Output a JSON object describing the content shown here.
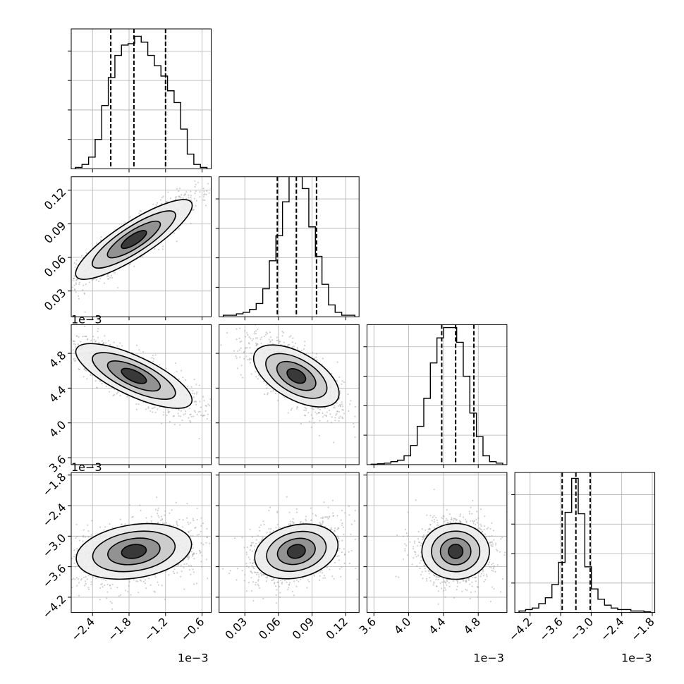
{
  "chart_data": {
    "type": "corner",
    "parameters": [
      {
        "axis_min": -2.75,
        "axis_max": -0.45,
        "ticks": [
          -2.4,
          -1.8,
          -1.2,
          -0.6
        ],
        "tick_labels": [
          "−2.4",
          "−1.8",
          "−1.2",
          "−0.6"
        ],
        "offset_label": "1e−3",
        "quantiles": [
          -2.1,
          -1.72,
          -1.2
        ]
      },
      {
        "axis_min": 0.007,
        "axis_max": 0.132,
        "ticks": [
          0.03,
          0.06,
          0.09,
          0.12
        ],
        "tick_labels": [
          "0.03",
          "0.06",
          "0.09",
          "0.12"
        ],
        "offset_label": "",
        "quantiles": [
          0.059,
          0.076,
          0.094
        ]
      },
      {
        "axis_min": 3.52,
        "axis_max": 5.13,
        "ticks": [
          3.6,
          4.0,
          4.4,
          4.8
        ],
        "tick_labels": [
          "3.6",
          "4.0",
          "4.4",
          "4.8"
        ],
        "offset_label": "1e−3",
        "quantiles": [
          4.38,
          4.54,
          4.75
        ]
      },
      {
        "axis_min": -4.5,
        "axis_max": -1.75,
        "ticks": [
          -4.2,
          -3.6,
          -3.0,
          -2.4,
          -1.8
        ],
        "tick_labels": [
          "−4.2",
          "−3.6",
          "−3.0",
          "−2.4",
          "−1.8"
        ],
        "offset_label": "1e−3",
        "quantiles": [
          -3.57,
          -3.3,
          -3.02
        ]
      }
    ],
    "histograms": [
      [
        0.01,
        0.03,
        0.08,
        0.2,
        0.43,
        0.62,
        0.77,
        0.84,
        0.85,
        0.9,
        0.86,
        0.77,
        0.7,
        0.63,
        0.53,
        0.45,
        0.27,
        0.1,
        0.03,
        0.01
      ],
      [
        0.01,
        0.01,
        0.02,
        0.03,
        0.05,
        0.09,
        0.19,
        0.38,
        0.55,
        0.78,
        1.0,
        1.05,
        0.87,
        0.61,
        0.41,
        0.22,
        0.08,
        0.03,
        0.01,
        0.01
      ],
      [
        0.003,
        0.006,
        0.01,
        0.02,
        0.03,
        0.06,
        0.13,
        0.26,
        0.45,
        0.69,
        0.86,
        0.93,
        0.93,
        0.83,
        0.6,
        0.35,
        0.19,
        0.06,
        0.02,
        0.01
      ],
      [
        0.01,
        0.02,
        0.03,
        0.06,
        0.1,
        0.19,
        0.34,
        0.68,
        0.91,
        0.67,
        0.31,
        0.16,
        0.09,
        0.05,
        0.03,
        0.02,
        0.02,
        0.01,
        0.01,
        0.005
      ]
    ],
    "hist_ylim": [
      0,
      0.95
    ],
    "hist_ticks": [
      0.2,
      0.4,
      0.6,
      0.8
    ],
    "correlations": {
      "1-0": 0.9,
      "2-0": -0.8,
      "2-1": -0.7,
      "3-0": 0.3,
      "3-1": 0.35,
      "3-2": 0.0
    },
    "scatter_samples_per_panel": 1400,
    "grid": true,
    "contour_color": "#000000",
    "sample_color": "#999999",
    "quantile_line_style": "dashed"
  }
}
